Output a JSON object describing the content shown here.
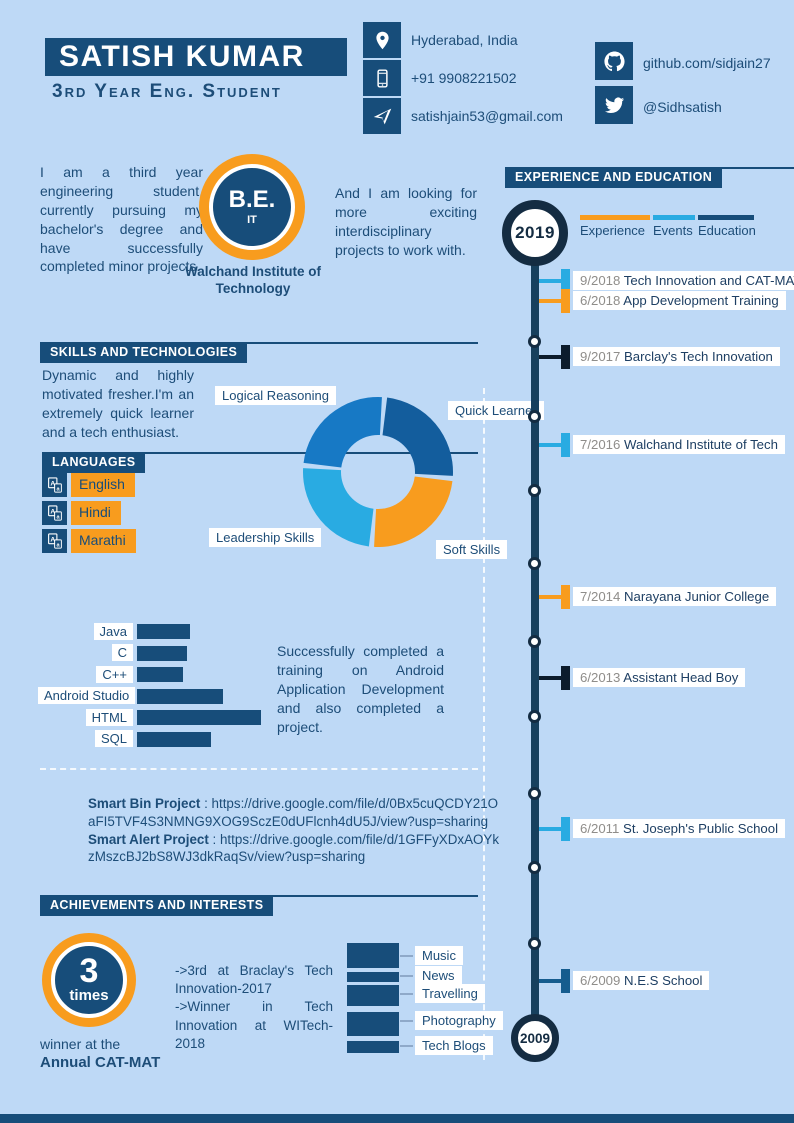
{
  "palette": {
    "background": "#bed9f6",
    "dark_blue": "#174d7a",
    "navy": "#142c42",
    "orange": "#f89c1e",
    "cyan": "#29abe2",
    "text": "#1d4d78",
    "date_gray": "#8f8d8a"
  },
  "header": {
    "name": "SATISH KUMAR",
    "subtitle": "3rd Year Eng. Student",
    "contacts": [
      {
        "icon": "location-pin-icon",
        "value": "Hyderabad, India",
        "link": false
      },
      {
        "icon": "mobile-phone-icon",
        "value": "+91 9908221502",
        "link": false
      },
      {
        "icon": "paper-plane-icon",
        "value": "satishjain53@gmail.com",
        "link": true
      }
    ],
    "social": [
      {
        "icon": "github-icon",
        "value": "github.com/sidjain27",
        "link": true
      },
      {
        "icon": "twitter-icon",
        "value": "@Sidhsatish",
        "link": true
      }
    ]
  },
  "about": {
    "left_text": "I am a third year engineering student, currently pursuing my bachelor's degree and have successfully completed minor projects.",
    "badge_degree": "B.E.",
    "badge_branch": "IT",
    "institute": "Walchand Institute of Technology",
    "right_text": "And I am looking for more exciting interdisciplinary projects to work with."
  },
  "skills": {
    "title": "SKILLS AND TECHNOLOGIES",
    "intro": "Dynamic and highly motivated fresher.I'm an extremely quick learner and a tech enthusiast.",
    "languages_title": "LANGUAGES",
    "languages": [
      "English",
      "Hindi",
      "Marathi"
    ],
    "note": "Successfully completed a training on Android Application Development and also completed a project."
  },
  "chart_data": [
    {
      "type": "pie",
      "title": "Skills donut",
      "labels": [
        "Quick Learner",
        "Soft Skills",
        "Leadership Skills",
        "Logical Reasoning"
      ],
      "values": [
        25,
        25,
        25,
        25
      ],
      "colors": [
        "#135d9d",
        "#f89c1e",
        "#29abe2",
        "#1779c5"
      ],
      "donut": true,
      "legend_position": "labels-around-chart"
    },
    {
      "type": "bar",
      "title": "Technology proficiency",
      "orientation": "horizontal",
      "categories": [
        "Java",
        "C",
        "C++",
        "Android Studio",
        "HTML",
        "SQL"
      ],
      "values": [
        43,
        40,
        37,
        69,
        100,
        60
      ],
      "xlim": [
        0,
        100
      ],
      "color": "#174d7a",
      "axis_labels_shown": false
    },
    {
      "type": "bar",
      "title": "Interests",
      "orientation": "vertical-stacked-blocks",
      "categories": [
        "Music",
        "News",
        "Travelling",
        "Photography",
        "Tech Blogs"
      ],
      "values": [
        25,
        10,
        21,
        24,
        12
      ],
      "color": "#174d7a",
      "axis_labels_shown": false
    }
  ],
  "projects": [
    {
      "name": "Smart Bin Project",
      "url": "https://drive.google.com/file/d/0Bx5cuQCDY21OaFI5TVF4S3NMNG9XOG9SczE0dUFlcnh4dU5J/view?usp=sharing"
    },
    {
      "name": "Smart Alert Project",
      "url": "https://drive.google.com/file/d/1GFFyXDxAOYkzMszcBJ2bS8WJ3dkRaqSv/view?usp=sharing"
    }
  ],
  "achievements": {
    "title": "ACHIEVEMENTS AND INTERESTS",
    "badge_value": "3",
    "badge_unit": "times",
    "caption_line1": "winner at the",
    "caption_line2": "Annual CAT-MAT",
    "bullets": [
      "->3rd at Braclay's Tech Innovation-2017",
      "->Winner in Tech Innovation at WITech-2018"
    ]
  },
  "timeline": {
    "title": "EXPERIENCE AND EDUCATION",
    "start_year": "2019",
    "end_year": "2009",
    "legend": [
      {
        "label": "Experience",
        "color": "#f89c1e"
      },
      {
        "label": "Events",
        "color": "#29abe2"
      },
      {
        "label": "Education",
        "color": "#174d7a"
      }
    ],
    "items": [
      {
        "date": "9/2018",
        "label": "Tech Innovation and CAT-MAT",
        "color": "#29abe2"
      },
      {
        "date": "6/2018",
        "label": "App Development Training",
        "color": "#f89c1e"
      },
      {
        "date": "9/2017",
        "label": "Barclay's Tech Innovation",
        "color": "#0c1c2c"
      },
      {
        "date": "7/2016",
        "label": "Walchand Institute of Tech",
        "color": "#29abe2"
      },
      {
        "date": "7/2014",
        "label": "Narayana Junior College",
        "color": "#f89c1e"
      },
      {
        "date": "6/2013",
        "label": "Assistant Head Boy",
        "color": "#0c1c2c"
      },
      {
        "date": "6/2011",
        "label": "St. Joseph's Public School",
        "color": "#29abe2"
      },
      {
        "date": "6/2009",
        "label": "N.E.S School",
        "color": "#155c8e"
      }
    ]
  }
}
